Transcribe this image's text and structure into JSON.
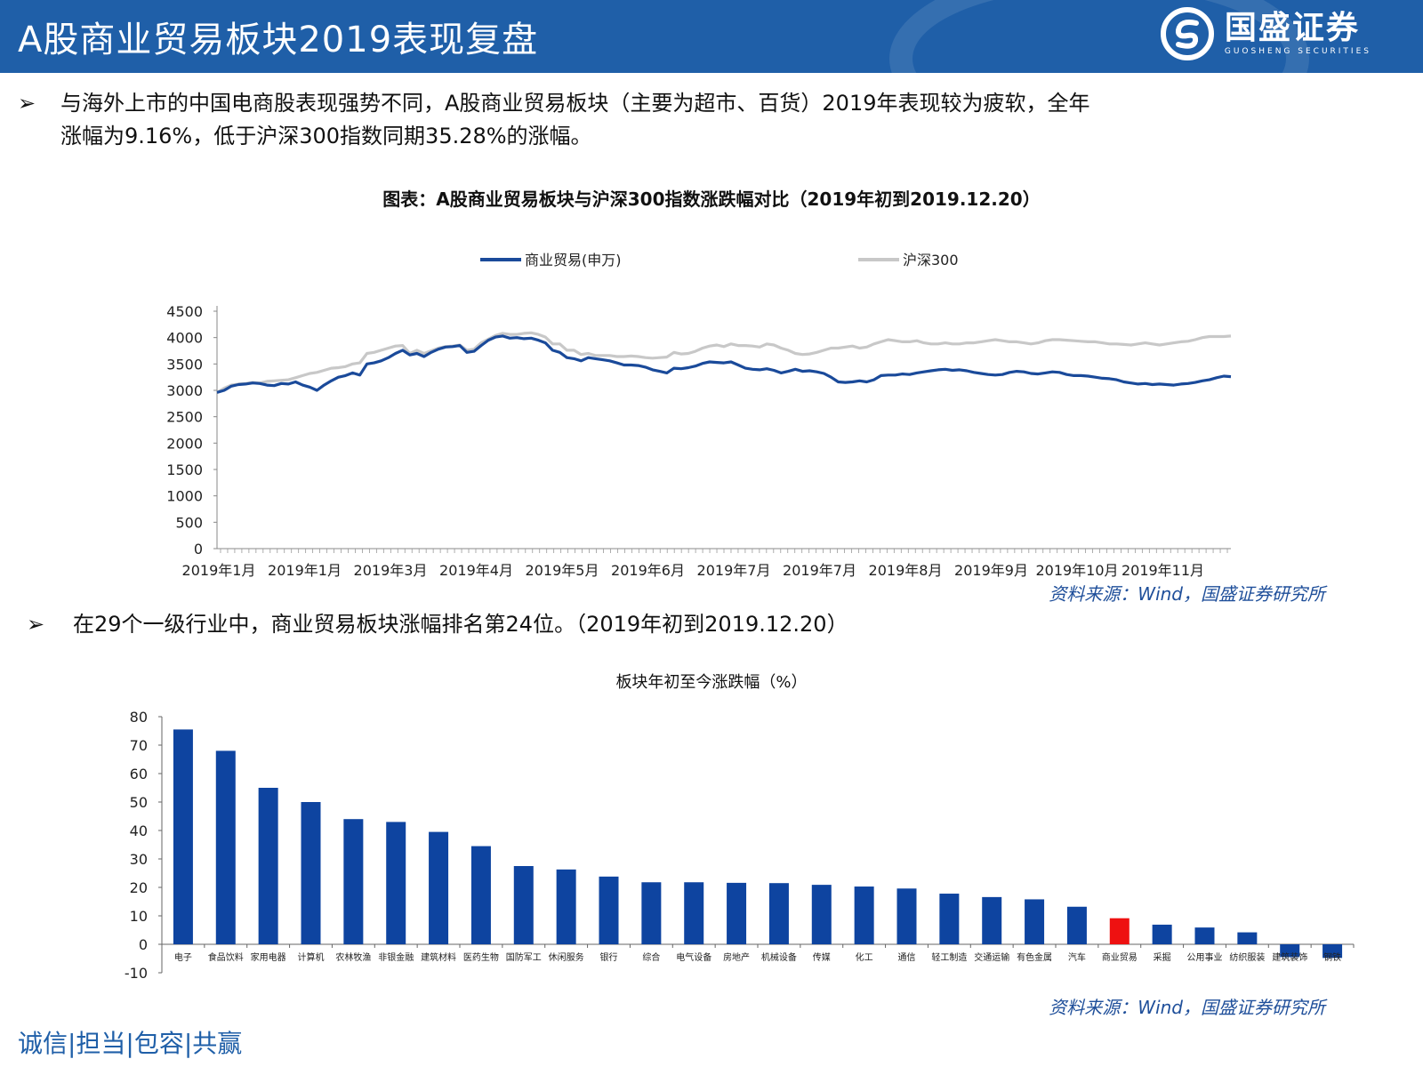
{
  "header": {
    "title": "A股商业贸易板块2019表现复盘",
    "logo_cn": "国盛证券",
    "logo_en": "GUOSHENG SECURITIES",
    "bg_color": "#1f5fa8"
  },
  "bullets": {
    "arrow": "➢",
    "b1_line1": "与海外上市的中国电商股表现强势不同，A股商业贸易板块（主要为超市、百货）2019年表现较为疲软，全年",
    "b1_line2": "涨幅为9.16%，低于沪深300指数同期35.28%的涨幅。",
    "b2": "在29个一级行业中，商业贸易板块涨幅排名第24位。（2019年初到2019.12.20）"
  },
  "source_text": "资料来源：Wind，国盛证券研究所",
  "footer": "诚信|担当|包容|共赢",
  "chart_data": [
    {
      "type": "line",
      "title": "图表：A股商业贸易板块与沪深300指数涨跌幅对比（2019年初到2019.12.20）",
      "legend_position": "top",
      "ylim": [
        0,
        4500
      ],
      "yticks": [
        0,
        500,
        1000,
        1500,
        2000,
        2500,
        3000,
        3500,
        4000,
        4500
      ],
      "x_tick_labels": [
        "2019年1月",
        "2019年1月",
        "2019年3月",
        "2019年4月",
        "2019年5月",
        "2019年6月",
        "2019年7月",
        "2019年7月",
        "2019年8月",
        "2019年9月",
        "2019年10月",
        "2019年11月"
      ],
      "series": [
        {
          "name": "商业贸易(申万)",
          "color": "#1a4a9a",
          "values": [
            2960,
            3000,
            3080,
            3110,
            3120,
            3140,
            3130,
            3100,
            3090,
            3130,
            3120,
            3160,
            3100,
            3060,
            3000,
            3100,
            3180,
            3250,
            3280,
            3330,
            3290,
            3500,
            3520,
            3560,
            3620,
            3700,
            3760,
            3670,
            3700,
            3640,
            3720,
            3780,
            3820,
            3830,
            3850,
            3720,
            3740,
            3850,
            3950,
            4010,
            4030,
            3990,
            4000,
            3980,
            3990,
            3950,
            3900,
            3760,
            3720,
            3620,
            3600,
            3560,
            3620,
            3600,
            3580,
            3560,
            3520,
            3480,
            3480,
            3470,
            3440,
            3390,
            3360,
            3330,
            3420,
            3410,
            3430,
            3460,
            3510,
            3540,
            3530,
            3520,
            3540,
            3480,
            3420,
            3400,
            3390,
            3410,
            3380,
            3330,
            3360,
            3400,
            3360,
            3370,
            3350,
            3320,
            3250,
            3160,
            3150,
            3160,
            3180,
            3160,
            3200,
            3280,
            3290,
            3290,
            3310,
            3300,
            3330,
            3350,
            3370,
            3390,
            3400,
            3380,
            3390,
            3370,
            3340,
            3320,
            3300,
            3290,
            3300,
            3340,
            3360,
            3350,
            3320,
            3310,
            3330,
            3350,
            3340,
            3300,
            3280,
            3280,
            3270,
            3250,
            3230,
            3220,
            3200,
            3160,
            3140,
            3120,
            3130,
            3110,
            3120,
            3110,
            3100,
            3120,
            3130,
            3150,
            3180,
            3200,
            3240,
            3270,
            3260
          ]
        },
        {
          "name": "沪深300",
          "color": "#c8c8c8",
          "values": [
            2960,
            3040,
            3100,
            3120,
            3130,
            3150,
            3140,
            3170,
            3180,
            3190,
            3200,
            3240,
            3280,
            3320,
            3340,
            3380,
            3420,
            3430,
            3450,
            3500,
            3520,
            3700,
            3720,
            3760,
            3800,
            3840,
            3850,
            3700,
            3760,
            3700,
            3750,
            3800,
            3830,
            3840,
            3860,
            3760,
            3780,
            3900,
            3970,
            4040,
            4080,
            4060,
            4060,
            4080,
            4090,
            4060,
            4010,
            3880,
            3880,
            3760,
            3760,
            3680,
            3700,
            3660,
            3660,
            3660,
            3640,
            3640,
            3650,
            3640,
            3620,
            3610,
            3620,
            3630,
            3720,
            3690,
            3700,
            3740,
            3800,
            3840,
            3860,
            3830,
            3880,
            3850,
            3850,
            3840,
            3820,
            3880,
            3860,
            3800,
            3760,
            3700,
            3680,
            3690,
            3720,
            3760,
            3800,
            3800,
            3820,
            3840,
            3800,
            3820,
            3880,
            3920,
            3960,
            3940,
            3920,
            3920,
            3940,
            3900,
            3880,
            3880,
            3900,
            3880,
            3880,
            3900,
            3900,
            3920,
            3940,
            3960,
            3940,
            3920,
            3920,
            3900,
            3880,
            3900,
            3940,
            3960,
            3960,
            3950,
            3940,
            3930,
            3920,
            3920,
            3900,
            3880,
            3880,
            3870,
            3860,
            3880,
            3900,
            3880,
            3860,
            3880,
            3900,
            3920,
            3930,
            3960,
            4000,
            4020,
            4020,
            4020,
            4030
          ]
        }
      ]
    },
    {
      "type": "bar",
      "title": "板块年初至今涨跌幅（%）",
      "ylim": [
        -10,
        80
      ],
      "yticks": [
        -10,
        0,
        10,
        20,
        30,
        40,
        50,
        60,
        70,
        80
      ],
      "categories": [
        "电子",
        "食品饮料",
        "家用电器",
        "计算机",
        "农林牧渔",
        "非银金融",
        "建筑材料",
        "医药生物",
        "国防军工",
        "休闲服务",
        "银行",
        "综合",
        "电气设备",
        "房地产",
        "机械设备",
        "传媒",
        "化工",
        "通信",
        "轻工制造",
        "交通运输",
        "有色金属",
        "汽车",
        "商业贸易",
        "采掘",
        "公用事业",
        "纺织服装",
        "建筑装饰",
        "钢铁"
      ],
      "values": [
        75.5,
        68,
        55,
        50,
        44,
        43,
        39.5,
        34.5,
        27.5,
        26.3,
        23.8,
        21.8,
        21.8,
        21.6,
        21.5,
        20.9,
        20.3,
        19.6,
        17.8,
        16.6,
        15.8,
        13.2,
        9.16,
        6.9,
        5.9,
        4.2,
        -4.5,
        -4.8
      ],
      "bar_color": "#0e44a0",
      "highlight_color": "#ee1111",
      "highlight_category": "商业贸易"
    }
  ]
}
